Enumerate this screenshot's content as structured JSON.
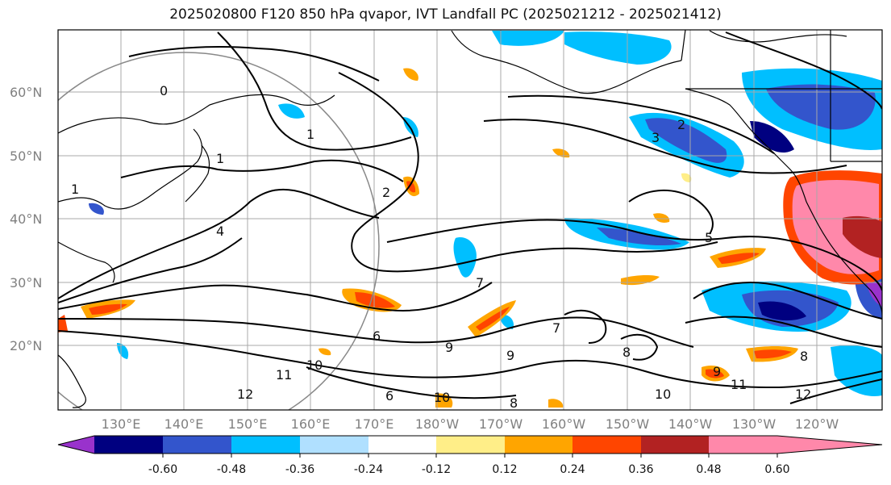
{
  "title": "2025020800 F120 850 hPa qvapor, IVT Landfall PC (2025021212 - 2025021412)",
  "map": {
    "lat_labels": [
      "60°N",
      "50°N",
      "40°N",
      "30°N",
      "20°N"
    ],
    "lon_labels": [
      "130°E",
      "140°E",
      "150°E",
      "160°E",
      "170°E",
      "180°W",
      "170°W",
      "160°W",
      "150°W",
      "140°W",
      "130°W",
      "120°W"
    ],
    "contour_labels": [
      "0",
      "1",
      "1",
      "1",
      "2",
      "2",
      "3",
      "4",
      "5",
      "6",
      "6",
      "7",
      "7",
      "8",
      "8",
      "8",
      "9",
      "9",
      "9",
      "10",
      "10",
      "10",
      "11",
      "11",
      "12",
      "12"
    ]
  },
  "colorbar": {
    "colors": [
      "#9932CC",
      "#000080",
      "#3355CC",
      "#00BFFF",
      "#B0E0FF",
      "#FFFFFF",
      "#FFEE88",
      "#FFA500",
      "#FF4500",
      "#B22222",
      "#FF88AA"
    ],
    "tick_labels": [
      "-0.60",
      "-0.48",
      "-0.36",
      "-0.24",
      "-0.12",
      "0.12",
      "0.24",
      "0.36",
      "0.48",
      "0.60"
    ]
  }
}
